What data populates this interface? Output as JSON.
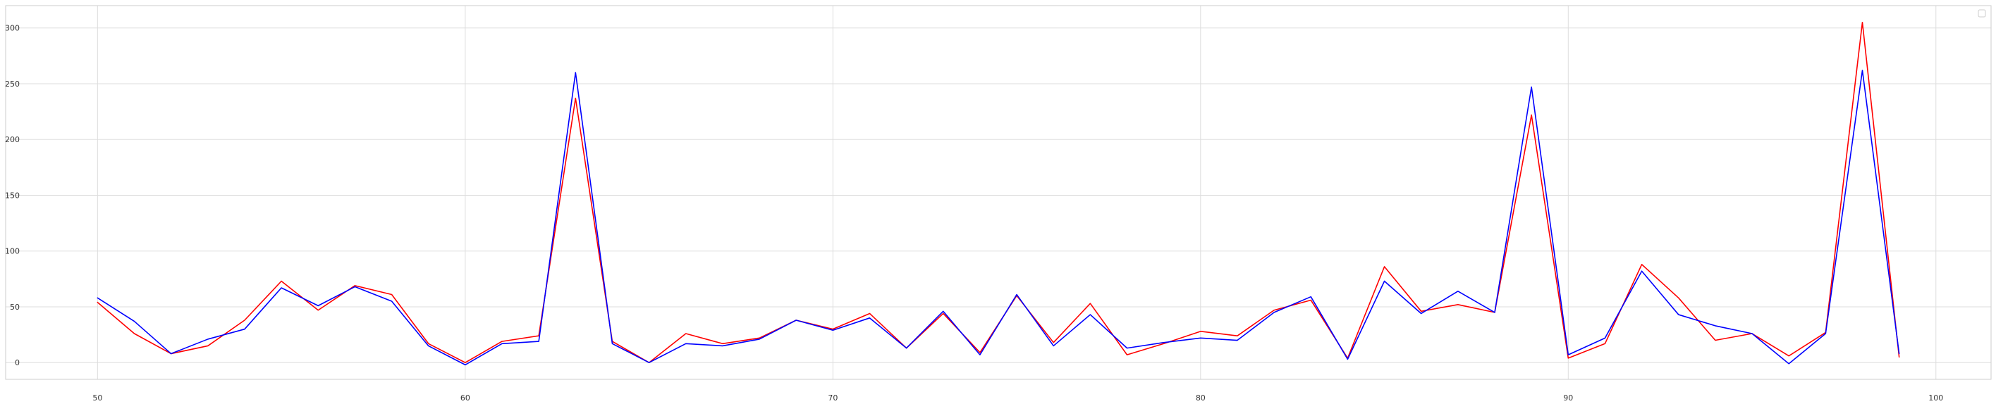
{
  "chart_data": {
    "type": "line",
    "title": "",
    "xlabel": "",
    "ylabel": "",
    "xlim": [
      47.5,
      101.5
    ],
    "ylim": [
      -15,
      320
    ],
    "grid": true,
    "legend": "top-right",
    "x_ticks": [
      50,
      60,
      70,
      80,
      90,
      100
    ],
    "y_ticks": [
      0,
      50,
      100,
      150,
      200,
      250,
      300
    ],
    "x": [
      50,
      51,
      52,
      53,
      54,
      55,
      56,
      57,
      58,
      59,
      60,
      61,
      62,
      63,
      64,
      65,
      66,
      67,
      68,
      69,
      70,
      71,
      72,
      73,
      74,
      75,
      76,
      77,
      78,
      79,
      80,
      81,
      82,
      83,
      84,
      85,
      86,
      87,
      88,
      89,
      90,
      91,
      92,
      93,
      94,
      95,
      96,
      97,
      98,
      99
    ],
    "series": [
      {
        "color": "#ff0000",
        "values": [
          54,
          26,
          8,
          15,
          38,
          73,
          47,
          69,
          61,
          17,
          0,
          19,
          24,
          237,
          19,
          0,
          26,
          17,
          22,
          38,
          30,
          44,
          13,
          44,
          9,
          60,
          18,
          53,
          7,
          17,
          28,
          24,
          47,
          56,
          4,
          86,
          46,
          52,
          45,
          222,
          4,
          17,
          88,
          58,
          20,
          26,
          6,
          27,
          305,
          5
        ]
      },
      {
        "color": "#0000ff",
        "values": [
          58,
          37,
          8,
          21,
          30,
          67,
          51,
          68,
          55,
          15,
          -2,
          17,
          19,
          260,
          17,
          0,
          17,
          15,
          21,
          38,
          29,
          40,
          13,
          46,
          7,
          61,
          15,
          43,
          13,
          18,
          22,
          20,
          45,
          59,
          3,
          73,
          44,
          64,
          45,
          247,
          7,
          22,
          82,
          43,
          33,
          26,
          -1,
          26,
          262,
          8
        ]
      }
    ]
  }
}
